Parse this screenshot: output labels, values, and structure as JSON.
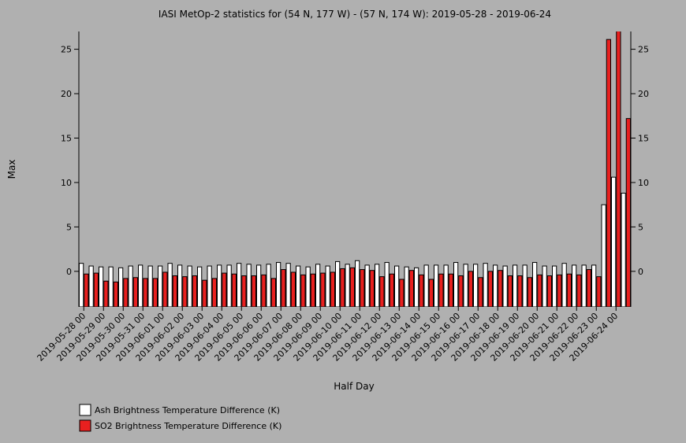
{
  "chart_data": {
    "type": "bar",
    "title": "IASI MetOp-2 statistics for (54 N, 177 W) - (57 N, 174 W): 2019-05-28 - 2019-06-24",
    "x_label": "Half Day",
    "y_label": "Max",
    "categories": [
      "2019-05-28 00",
      null,
      "2019-05-29 00",
      null,
      "2019-05-30 00",
      null,
      "2019-05-31 00",
      null,
      "2019-06-01 00",
      null,
      "2019-06-02 00",
      null,
      "2019-06-03 00",
      null,
      "2019-06-04 00",
      null,
      "2019-06-05 00",
      null,
      "2019-06-06 00",
      null,
      "2019-06-07 00",
      null,
      "2019-06-08 00",
      null,
      "2019-06-09 00",
      null,
      "2019-06-10 00",
      null,
      "2019-06-11 00",
      null,
      "2019-06-12 00",
      null,
      "2019-06-13 00",
      null,
      "2019-06-14 00",
      null,
      "2019-06-15 00",
      null,
      "2019-06-16 00",
      null,
      "2019-06-17 00",
      null,
      "2019-06-18 00",
      null,
      "2019-06-19 00",
      null,
      "2019-06-20 00",
      null,
      "2019-06-21 00",
      null,
      "2019-06-22 00",
      null,
      "2019-06-23 00",
      null,
      "2019-06-24 00",
      null
    ],
    "series": [
      {
        "name": "Ash Brightness Temperature Difference (K)",
        "color": "#ffffff",
        "values": [
          0.9,
          0.6,
          0.5,
          0.5,
          0.4,
          0.6,
          0.7,
          0.6,
          0.6,
          0.9,
          0.7,
          0.6,
          0.5,
          0.6,
          0.7,
          0.7,
          0.9,
          0.8,
          0.7,
          0.8,
          1.0,
          0.9,
          0.6,
          0.5,
          0.8,
          0.6,
          1.1,
          0.8,
          1.2,
          0.7,
          0.8,
          1.0,
          0.6,
          0.5,
          0.4,
          0.7,
          0.7,
          0.7,
          1.0,
          0.8,
          0.8,
          0.9,
          0.7,
          0.6,
          0.7,
          0.7,
          1.0,
          0.6,
          0.6,
          0.9,
          0.7,
          0.7,
          0.7,
          7.5,
          10.6,
          8.8
        ]
      },
      {
        "name": "SO2 Brightness Temperature Difference (K)",
        "color": "#e8201f",
        "values": [
          -0.3,
          -0.2,
          -1.1,
          -1.2,
          -0.8,
          -0.7,
          -0.8,
          -0.8,
          -0.1,
          -0.5,
          -0.6,
          -0.5,
          -1.0,
          -0.8,
          -0.2,
          -0.3,
          -0.5,
          -0.5,
          -0.4,
          -0.8,
          0.2,
          -0.1,
          -0.4,
          -0.3,
          -0.2,
          -0.1,
          0.3,
          0.4,
          0.2,
          0.1,
          -0.6,
          -0.3,
          -0.9,
          0.1,
          -0.4,
          -0.9,
          -0.3,
          -0.3,
          -0.5,
          0.0,
          -0.7,
          0.0,
          0.1,
          -0.5,
          -0.5,
          -0.7,
          -0.4,
          -0.5,
          -0.4,
          -0.3,
          -0.4,
          0.2,
          -0.6,
          26.1,
          27.5,
          17.2
        ]
      }
    ],
    "ylim": [
      -4,
      27
    ],
    "yticks": [
      0,
      5,
      10,
      15,
      20,
      25
    ]
  }
}
